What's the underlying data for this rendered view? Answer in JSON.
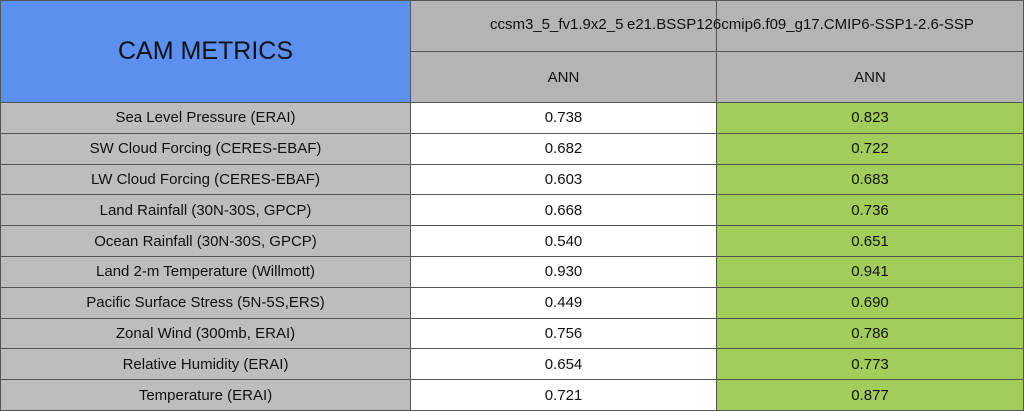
{
  "header": {
    "title": "CAM METRICS"
  },
  "columns": [
    {
      "name": "ccsm3_5_fv1.9x2_5",
      "period": "ANN"
    },
    {
      "name": "e21.BSSP126cmip6.f09_g17.CMIP6-SSP1-2.6-SSP",
      "period": "ANN"
    }
  ],
  "table": {
    "rows": [
      [
        "Sea Level Pressure (ERAI)",
        "0.738",
        "0.823"
      ],
      [
        "SW Cloud Forcing (CERES-EBAF)",
        "0.682",
        "0.722"
      ],
      [
        "LW Cloud Forcing (CERES-EBAF)",
        "0.603",
        "0.683"
      ],
      [
        "Land Rainfall (30N-30S, GPCP)",
        "0.668",
        "0.736"
      ],
      [
        "Ocean Rainfall (30N-30S, GPCP)",
        "0.540",
        "0.651"
      ],
      [
        "Land 2-m Temperature (Willmott)",
        "0.930",
        "0.941"
      ],
      [
        "Pacific Surface Stress (5N-5S,ERS)",
        "0.449",
        "0.690"
      ],
      [
        "Zonal Wind (300mb, ERAI)",
        "0.756",
        "0.786"
      ],
      [
        "Relative Humidity (ERAI)",
        "0.654",
        "0.773"
      ],
      [
        "Temperature (ERAI)",
        "0.721",
        "0.877"
      ]
    ]
  }
}
